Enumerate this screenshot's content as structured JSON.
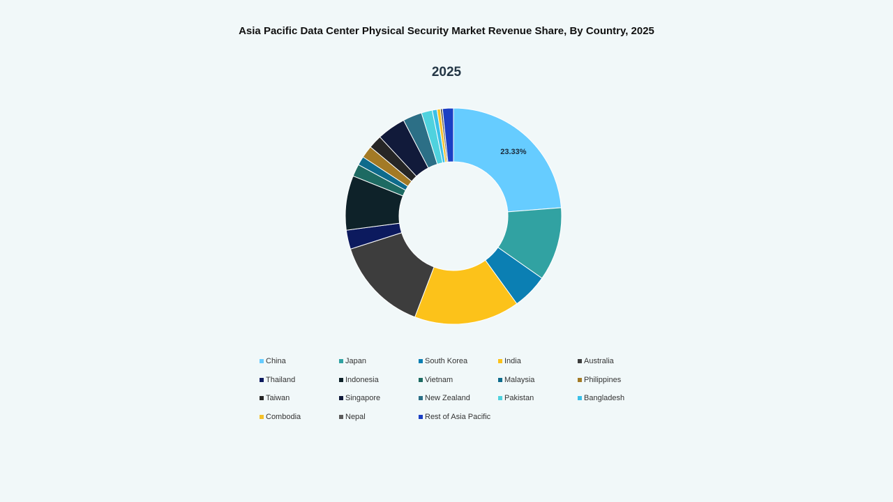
{
  "chart_data": {
    "type": "pie",
    "title": "Asia Pacific Data Center Physical Security Market Revenue Share, By Country, 2025",
    "subtitle": "2025",
    "donut": true,
    "start_angle_deg": 90,
    "direction": "clockwise",
    "legend_position": "bottom",
    "slices": [
      {
        "name": "China",
        "value": 23.33,
        "color": "#66ccff",
        "label": "23.33%"
      },
      {
        "name": "Japan",
        "value": 10.8,
        "color": "#31a2a2",
        "label": ""
      },
      {
        "name": "South Korea",
        "value": 5.2,
        "color": "#0b7fb3",
        "label": ""
      },
      {
        "name": "India",
        "value": 15.5,
        "color": "#fcc21a",
        "label": ""
      },
      {
        "name": "Australia",
        "value": 14.0,
        "color": "#3d3d3d",
        "label": ""
      },
      {
        "name": "Thailand",
        "value": 2.8,
        "color": "#0c1a5e",
        "label": ""
      },
      {
        "name": "Indonesia",
        "value": 8.0,
        "color": "#0e2229",
        "label": ""
      },
      {
        "name": "Vietnam",
        "value": 1.8,
        "color": "#1d6a62",
        "label": ""
      },
      {
        "name": "Malaysia",
        "value": 1.3,
        "color": "#0e6b8c",
        "label": ""
      },
      {
        "name": "Philippines",
        "value": 1.8,
        "color": "#a37a25",
        "label": ""
      },
      {
        "name": "Taiwan",
        "value": 2.0,
        "color": "#262626",
        "label": ""
      },
      {
        "name": "Singapore",
        "value": 4.2,
        "color": "#111a3a",
        "label": ""
      },
      {
        "name": "New Zealand",
        "value": 2.8,
        "color": "#2c6f86",
        "label": ""
      },
      {
        "name": "Pakistan",
        "value": 1.6,
        "color": "#4fd2de",
        "label": ""
      },
      {
        "name": "Bangladesh",
        "value": 0.7,
        "color": "#3bc0e8",
        "label": ""
      },
      {
        "name": "Combodia",
        "value": 0.5,
        "color": "#f5c12a",
        "label": ""
      },
      {
        "name": "Nepal",
        "value": 0.3,
        "color": "#5c5c5c",
        "label": ""
      },
      {
        "name": "Rest of Asia Pacific",
        "value": 1.6,
        "color": "#1b3fc4",
        "label": ""
      }
    ]
  }
}
